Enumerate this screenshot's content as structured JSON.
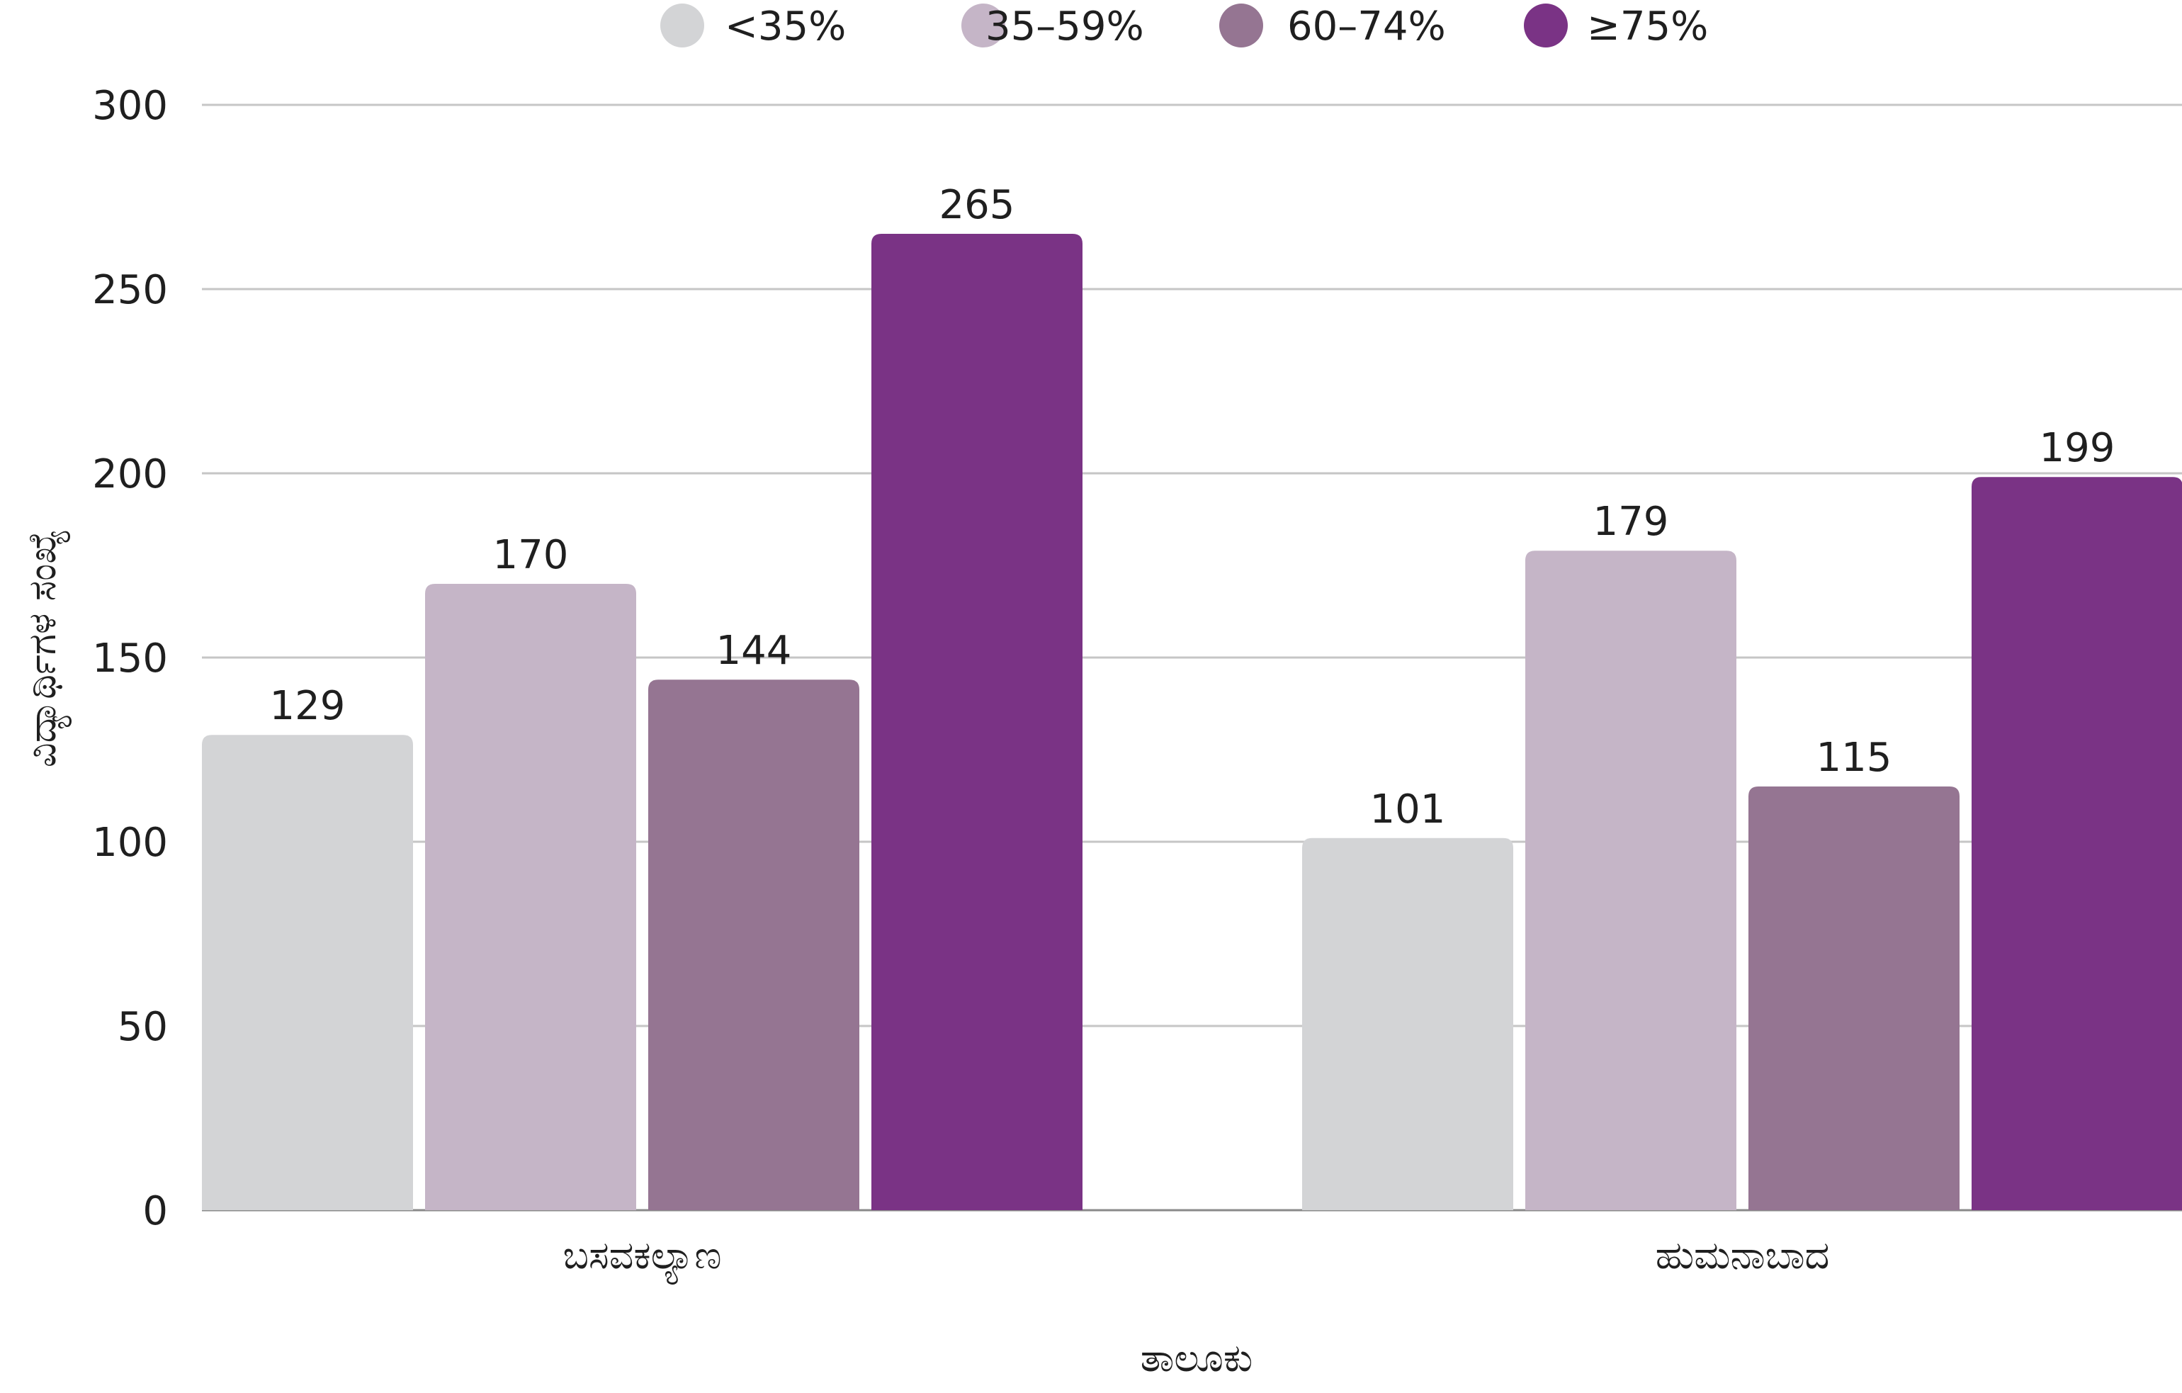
{
  "chart_data": {
    "type": "bar",
    "title": "",
    "xlabel": "ತಾಲೂಕು",
    "ylabel": "ವಿದ್ಯಾರ್ಥಿಗಳ ಸಂಖ್ಯೆ",
    "categories": [
      "ಬಸವಕಲ್ಯಾಣ",
      "ಹುಮನಾಬಾದ"
    ],
    "series": [
      {
        "name": "<35%",
        "color": "#d3d4d6",
        "values": [
          129,
          101
        ]
      },
      {
        "name": "35–59%",
        "color": "#c5b5c7",
        "values": [
          170,
          179
        ]
      },
      {
        "name": "60–74%",
        "color": "#957592",
        "values": [
          144,
          115
        ]
      },
      {
        "name": "≥75%",
        "color": "#7a3385",
        "values": [
          265,
          199
        ]
      }
    ],
    "ylim": [
      0,
      300
    ],
    "yticks": [
      0,
      50,
      100,
      150,
      200,
      250,
      300
    ],
    "grid": true,
    "legend_position": "top-center",
    "data_labels": true
  }
}
